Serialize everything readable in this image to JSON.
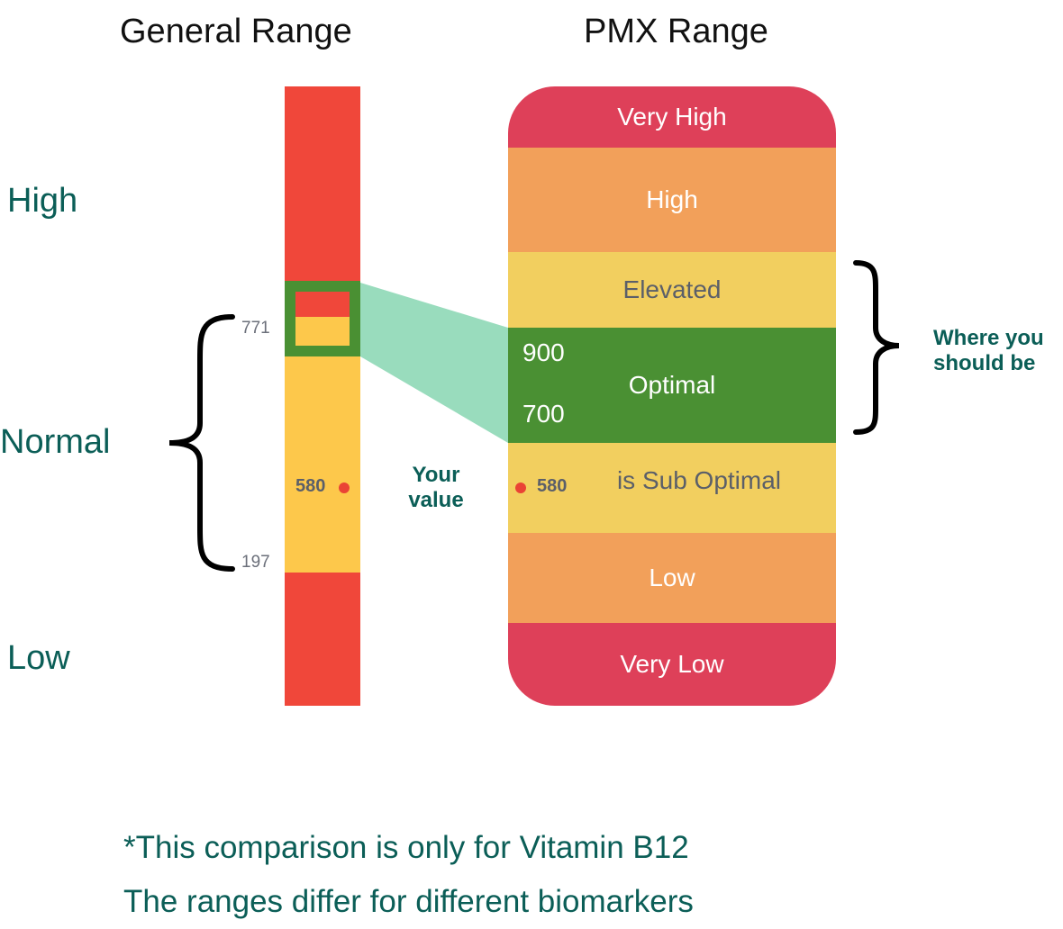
{
  "titles": {
    "general": "General Range",
    "pmx": "PMX Range"
  },
  "side_labels": {
    "high": "High",
    "normal": "Normal",
    "low": "Low"
  },
  "general_range": {
    "upper_limit": "771",
    "lower_limit": "197",
    "your_value": "580",
    "colors": {
      "out_of_range": "#f0473a",
      "normal": "#fdc84b",
      "highlight": "#4a9033"
    }
  },
  "pmx_bands": [
    {
      "label": "Very High",
      "color": "#de4059"
    },
    {
      "label": "High",
      "color": "#f2a05a"
    },
    {
      "label": "Elevated",
      "color": "#f2cf5f"
    },
    {
      "label": "Optimal",
      "color": "#4a9033",
      "upper": "900",
      "lower": "700"
    },
    {
      "label": "is Sub Optimal",
      "color": "#f2cf5f",
      "value": "580"
    },
    {
      "label": "Low",
      "color": "#f2a05a"
    },
    {
      "label": "Very Low",
      "color": "#de4059"
    }
  ],
  "your_value_label": [
    "Your",
    "value"
  ],
  "where_you_should_be": [
    "Where you",
    "should be"
  ],
  "notes": [
    "*This comparison is only for Vitamin B12",
    "The ranges differ for different biomarkers"
  ]
}
